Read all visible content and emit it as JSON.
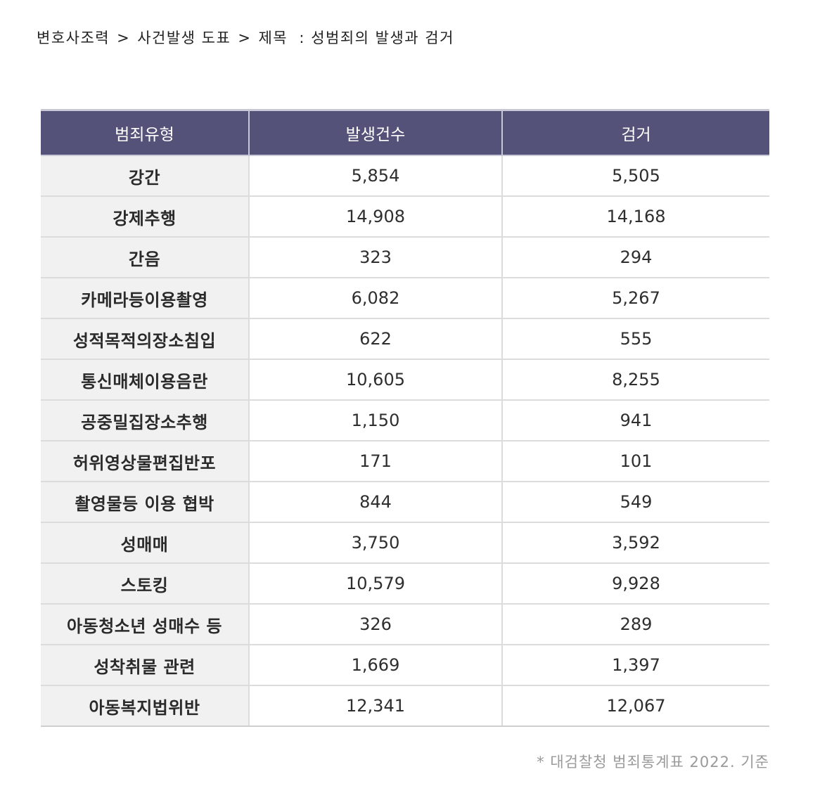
{
  "breadcrumb": {
    "items": [
      "변호사조력",
      "사건발생 도표",
      "제목"
    ],
    "separator": ">",
    "title_prefix": "  : ",
    "title": "성범죄의 발생과 검거"
  },
  "table": {
    "headers": [
      "범죄유형",
      "발생건수",
      "검거"
    ],
    "header_bg": "#55527a",
    "rows": [
      [
        "강간",
        "5,854",
        "5,505"
      ],
      [
        "강제추행",
        "14,908",
        "14,168"
      ],
      [
        "간음",
        "323",
        "294"
      ],
      [
        "카메라등이용촬영",
        "6,082",
        "5,267"
      ],
      [
        "성적목적의장소침입",
        "622",
        "555"
      ],
      [
        "통신매체이용음란",
        "10,605",
        "8,255"
      ],
      [
        "공중밀집장소추행",
        "1,150",
        "941"
      ],
      [
        "허위영상물편집반포",
        "171",
        "101"
      ],
      [
        "촬영물등 이용 협박",
        "844",
        "549"
      ],
      [
        "성매매",
        "3,750",
        "3,592"
      ],
      [
        "스토킹",
        "10,579",
        "9,928"
      ],
      [
        "아동청소년 성매수 등",
        "326",
        "289"
      ],
      [
        "성착취물 관련",
        "1,669",
        "1,397"
      ],
      [
        "아동복지법위반",
        "12,341",
        "12,067"
      ]
    ]
  },
  "footnote": "* 대검찰청 범죄통계표 2022. 기준"
}
